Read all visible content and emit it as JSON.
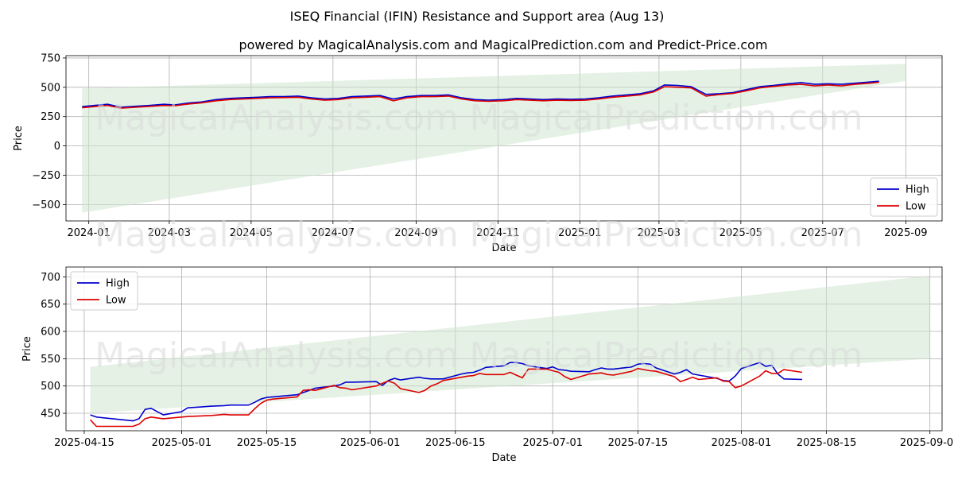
{
  "title": "ISEQ Financial (IFIN) Resistance and Support area (Aug 13)",
  "subtitle": "powered by MagicalAnalysis.com and MagicalPrediction.com and Predict-Price.com",
  "watermarks": [
    "MagicalAnalysis.com",
    "MagicalPrediction.com"
  ],
  "colors": {
    "high": "#0000cc",
    "low": "#dd0000",
    "band": "#cfe6cf",
    "grid": "#b0b0b0"
  },
  "chart_data": [
    {
      "type": "line",
      "xlabel": "Date",
      "ylabel": "Price",
      "xlim": [
        "2023-12-15",
        "2025-09-28"
      ],
      "ylim": [
        -640,
        770
      ],
      "grid": true,
      "legend": "bottom-right",
      "x_ticks": [
        "2024-01",
        "2024-03",
        "2024-05",
        "2024-07",
        "2024-09",
        "2024-11",
        "2025-01",
        "2025-03",
        "2025-05",
        "2025-07",
        "2025-09"
      ],
      "y_ticks": [
        750,
        500,
        250,
        0,
        -250,
        -500
      ],
      "band": {
        "x": [
          "2023-12-27",
          "2025-09-01"
        ],
        "lower": [
          -570,
          555
        ],
        "upper": [
          490,
          700
        ],
        "upper_right": [
          545,
          700
        ]
      },
      "series": [
        {
          "name": "High",
          "x": [
            "2023-12-27",
            "2024-01-05",
            "2024-01-15",
            "2024-01-25",
            "2024-02-05",
            "2024-02-15",
            "2024-02-26",
            "2024-03-05",
            "2024-03-15",
            "2024-03-25",
            "2024-04-05",
            "2024-04-15",
            "2024-04-25",
            "2024-05-05",
            "2024-05-15",
            "2024-05-25",
            "2024-06-05",
            "2024-06-15",
            "2024-06-25",
            "2024-07-05",
            "2024-07-15",
            "2024-07-25",
            "2024-08-05",
            "2024-08-15",
            "2024-08-25",
            "2024-09-05",
            "2024-09-15",
            "2024-09-25",
            "2024-10-05",
            "2024-10-15",
            "2024-10-25",
            "2024-11-05",
            "2024-11-15",
            "2024-11-25",
            "2024-12-05",
            "2024-12-15",
            "2024-12-25",
            "2025-01-05",
            "2025-01-15",
            "2025-01-25",
            "2025-02-05",
            "2025-02-15",
            "2025-02-25",
            "2025-03-05",
            "2025-03-15",
            "2025-03-25",
            "2025-04-05",
            "2025-04-15",
            "2025-04-25",
            "2025-05-05",
            "2025-05-15",
            "2025-05-25",
            "2025-06-05",
            "2025-06-15",
            "2025-06-25",
            "2025-07-05",
            "2025-07-15",
            "2025-07-25",
            "2025-08-05",
            "2025-08-12"
          ],
          "values": [
            335,
            345,
            355,
            330,
            338,
            345,
            355,
            350,
            365,
            375,
            395,
            405,
            410,
            415,
            420,
            420,
            425,
            410,
            400,
            405,
            420,
            425,
            430,
            400,
            420,
            430,
            430,
            435,
            410,
            395,
            390,
            395,
            405,
            400,
            395,
            400,
            398,
            400,
            410,
            425,
            435,
            445,
            470,
            520,
            515,
            505,
            440,
            445,
            455,
            480,
            505,
            515,
            530,
            540,
            525,
            530,
            525,
            535,
            545,
            552
          ]
        },
        {
          "name": "Low",
          "x": [
            "2023-12-27",
            "2024-01-05",
            "2024-01-15",
            "2024-01-25",
            "2024-02-05",
            "2024-02-15",
            "2024-02-26",
            "2024-03-05",
            "2024-03-15",
            "2024-03-25",
            "2024-04-05",
            "2024-04-15",
            "2024-04-25",
            "2024-05-05",
            "2024-05-15",
            "2024-05-25",
            "2024-06-05",
            "2024-06-15",
            "2024-06-25",
            "2024-07-05",
            "2024-07-15",
            "2024-07-25",
            "2024-08-05",
            "2024-08-15",
            "2024-08-25",
            "2024-09-05",
            "2024-09-15",
            "2024-09-25",
            "2024-10-05",
            "2024-10-15",
            "2024-10-25",
            "2024-11-05",
            "2024-11-15",
            "2024-11-25",
            "2024-12-05",
            "2024-12-15",
            "2024-12-25",
            "2025-01-05",
            "2025-01-15",
            "2025-01-25",
            "2025-02-05",
            "2025-02-15",
            "2025-02-25",
            "2025-03-05",
            "2025-03-15",
            "2025-03-25",
            "2025-04-05",
            "2025-04-15",
            "2025-04-25",
            "2025-05-05",
            "2025-05-15",
            "2025-05-25",
            "2025-06-05",
            "2025-06-15",
            "2025-06-25",
            "2025-07-05",
            "2025-07-15",
            "2025-07-25",
            "2025-08-05",
            "2025-08-12"
          ],
          "values": [
            325,
            335,
            345,
            322,
            330,
            337,
            345,
            342,
            357,
            367,
            385,
            395,
            400,
            405,
            410,
            412,
            415,
            400,
            390,
            395,
            410,
            415,
            420,
            385,
            410,
            420,
            420,
            425,
            400,
            385,
            380,
            385,
            395,
            390,
            385,
            390,
            388,
            390,
            400,
            415,
            425,
            435,
            460,
            505,
            500,
            495,
            425,
            438,
            447,
            470,
            495,
            507,
            520,
            525,
            512,
            520,
            512,
            525,
            535,
            543
          ]
        }
      ]
    },
    {
      "type": "line",
      "xlabel": "Date",
      "ylabel": "Price",
      "xlim": [
        "2025-04-12",
        "2025-09-03"
      ],
      "ylim": [
        418,
        718
      ],
      "grid": true,
      "legend": "top-left",
      "x_ticks": [
        "2025-04-15",
        "2025-05-01",
        "2025-05-15",
        "2025-06-01",
        "2025-06-15",
        "2025-07-01",
        "2025-07-15",
        "2025-08-01",
        "2025-08-15",
        "2025-09-01"
      ],
      "y_ticks": [
        700,
        650,
        600,
        550,
        500,
        450
      ],
      "band": {
        "x": [
          "2025-04-16",
          "2025-09-01"
        ],
        "lower": [
          450,
          550
        ],
        "upper": [
          535,
          702
        ]
      },
      "series": [
        {
          "name": "High",
          "x": [
            "2025-04-16",
            "2025-04-17",
            "2025-04-23",
            "2025-04-24",
            "2025-04-25",
            "2025-04-26",
            "2025-04-28",
            "2025-05-01",
            "2025-05-02",
            "2025-05-06",
            "2025-05-08",
            "2025-05-09",
            "2025-05-12",
            "2025-05-13",
            "2025-05-14",
            "2025-05-15",
            "2025-05-16",
            "2025-05-20",
            "2025-05-21",
            "2025-05-22",
            "2025-05-23",
            "2025-05-26",
            "2025-05-27",
            "2025-05-28",
            "2025-05-29",
            "2025-06-02",
            "2025-06-03",
            "2025-06-04",
            "2025-06-05",
            "2025-06-06",
            "2025-06-09",
            "2025-06-10",
            "2025-06-11",
            "2025-06-12",
            "2025-06-13",
            "2025-06-16",
            "2025-06-17",
            "2025-06-18",
            "2025-06-19",
            "2025-06-20",
            "2025-06-23",
            "2025-06-24",
            "2025-06-25",
            "2025-06-26",
            "2025-06-27",
            "2025-06-30",
            "2025-07-01",
            "2025-07-02",
            "2025-07-03",
            "2025-07-04",
            "2025-07-07",
            "2025-07-08",
            "2025-07-09",
            "2025-07-10",
            "2025-07-11",
            "2025-07-14",
            "2025-07-15",
            "2025-07-16",
            "2025-07-17",
            "2025-07-18",
            "2025-07-21",
            "2025-07-22",
            "2025-07-23",
            "2025-07-24",
            "2025-07-25",
            "2025-07-28",
            "2025-07-29",
            "2025-07-30",
            "2025-07-31",
            "2025-08-01",
            "2025-08-04",
            "2025-08-05",
            "2025-08-06",
            "2025-08-07",
            "2025-08-08",
            "2025-08-11"
          ],
          "values": [
            447,
            443,
            436,
            440,
            457,
            459,
            447,
            453,
            460,
            463,
            464,
            465,
            465,
            470,
            476,
            479,
            480,
            484,
            488,
            492,
            496,
            500,
            502,
            507,
            507,
            508,
            501,
            510,
            514,
            511,
            516,
            514,
            513,
            513,
            513,
            522,
            524,
            525,
            529,
            534,
            537,
            543,
            543,
            541,
            537,
            532,
            535,
            530,
            529,
            527,
            526,
            530,
            533,
            531,
            531,
            535,
            540,
            541,
            540,
            533,
            522,
            525,
            530,
            522,
            520,
            514,
            510,
            509,
            518,
            532,
            543,
            536,
            538,
            522,
            513,
            512
          ]
        },
        {
          "name": "Low",
          "x": [
            "2025-04-16",
            "2025-04-17",
            "2025-04-23",
            "2025-04-24",
            "2025-04-25",
            "2025-04-26",
            "2025-04-28",
            "2025-05-01",
            "2025-05-02",
            "2025-05-06",
            "2025-05-08",
            "2025-05-09",
            "2025-05-12",
            "2025-05-13",
            "2025-05-14",
            "2025-05-15",
            "2025-05-16",
            "2025-05-20",
            "2025-05-21",
            "2025-05-22",
            "2025-05-23",
            "2025-05-26",
            "2025-05-27",
            "2025-05-28",
            "2025-05-29",
            "2025-06-02",
            "2025-06-03",
            "2025-06-04",
            "2025-06-05",
            "2025-06-06",
            "2025-06-09",
            "2025-06-10",
            "2025-06-11",
            "2025-06-12",
            "2025-06-13",
            "2025-06-16",
            "2025-06-17",
            "2025-06-18",
            "2025-06-19",
            "2025-06-20",
            "2025-06-23",
            "2025-06-24",
            "2025-06-25",
            "2025-06-26",
            "2025-06-27",
            "2025-06-30",
            "2025-07-01",
            "2025-07-02",
            "2025-07-03",
            "2025-07-04",
            "2025-07-07",
            "2025-07-08",
            "2025-07-09",
            "2025-07-10",
            "2025-07-11",
            "2025-07-14",
            "2025-07-15",
            "2025-07-16",
            "2025-07-17",
            "2025-07-18",
            "2025-07-21",
            "2025-07-22",
            "2025-07-23",
            "2025-07-24",
            "2025-07-25",
            "2025-07-28",
            "2025-07-29",
            "2025-07-30",
            "2025-07-31",
            "2025-08-01",
            "2025-08-04",
            "2025-08-05",
            "2025-08-06",
            "2025-08-07",
            "2025-08-08",
            "2025-08-11"
          ],
          "values": [
            438,
            426,
            426,
            430,
            440,
            443,
            440,
            443,
            444,
            446,
            448,
            447,
            447,
            458,
            468,
            474,
            476,
            480,
            492,
            493,
            492,
            501,
            497,
            496,
            493,
            500,
            505,
            509,
            505,
            495,
            488,
            492,
            500,
            504,
            510,
            516,
            518,
            519,
            523,
            521,
            521,
            525,
            520,
            515,
            531,
            531,
            528,
            525,
            517,
            512,
            522,
            523,
            524,
            521,
            520,
            527,
            532,
            530,
            528,
            527,
            517,
            508,
            512,
            516,
            512,
            515,
            509,
            508,
            497,
            500,
            518,
            528,
            523,
            523,
            530,
            525
          ]
        }
      ]
    }
  ]
}
